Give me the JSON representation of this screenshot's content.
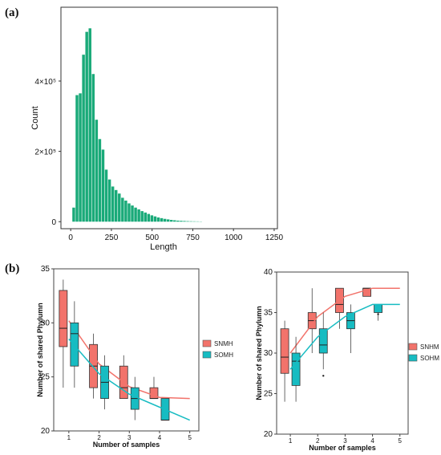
{
  "panel_labels": {
    "a": "(a)",
    "b": "(b)"
  },
  "chart_data": [
    {
      "type": "bar",
      "subtype": "histogram",
      "xlabel": "Length",
      "ylabel": "Count",
      "xlim": [
        -60,
        1270
      ],
      "ylim": [
        -20000,
        610000
      ],
      "x_ticks": [
        0,
        250,
        500,
        750,
        1000,
        1250
      ],
      "x_tick_labels": [
        "0",
        "250",
        "500",
        "750",
        "1000",
        "1250"
      ],
      "y_ticks": [
        0,
        200000,
        400000
      ],
      "y_tick_labels": [
        "0",
        "2×10⁵",
        "4×10⁵"
      ],
      "color": "#1aaa79",
      "bin_width": 20,
      "bins": [
        {
          "x": 20,
          "count": 40000
        },
        {
          "x": 40,
          "count": 360000
        },
        {
          "x": 60,
          "count": 365000
        },
        {
          "x": 80,
          "count": 475000
        },
        {
          "x": 100,
          "count": 540000
        },
        {
          "x": 120,
          "count": 550000
        },
        {
          "x": 140,
          "count": 420000
        },
        {
          "x": 160,
          "count": 290000
        },
        {
          "x": 180,
          "count": 235000
        },
        {
          "x": 200,
          "count": 205000
        },
        {
          "x": 220,
          "count": 148000
        },
        {
          "x": 240,
          "count": 120000
        },
        {
          "x": 260,
          "count": 100000
        },
        {
          "x": 280,
          "count": 90000
        },
        {
          "x": 300,
          "count": 80000
        },
        {
          "x": 320,
          "count": 68000
        },
        {
          "x": 340,
          "count": 60000
        },
        {
          "x": 360,
          "count": 52000
        },
        {
          "x": 380,
          "count": 46000
        },
        {
          "x": 400,
          "count": 40000
        },
        {
          "x": 420,
          "count": 35000
        },
        {
          "x": 440,
          "count": 30000
        },
        {
          "x": 460,
          "count": 26000
        },
        {
          "x": 480,
          "count": 22000
        },
        {
          "x": 500,
          "count": 18000
        },
        {
          "x": 520,
          "count": 15000
        },
        {
          "x": 540,
          "count": 12000
        },
        {
          "x": 560,
          "count": 10000
        },
        {
          "x": 580,
          "count": 8000
        },
        {
          "x": 600,
          "count": 6500
        },
        {
          "x": 620,
          "count": 5000
        },
        {
          "x": 640,
          "count": 4000
        },
        {
          "x": 660,
          "count": 3000
        },
        {
          "x": 680,
          "count": 2500
        },
        {
          "x": 700,
          "count": 2000
        },
        {
          "x": 720,
          "count": 1500
        },
        {
          "x": 740,
          "count": 1200
        },
        {
          "x": 760,
          "count": 1000
        },
        {
          "x": 780,
          "count": 800
        },
        {
          "x": 800,
          "count": 600
        }
      ]
    },
    {
      "type": "boxplot",
      "xlabel": "Number of samples",
      "ylabel": "Number of shared Phylumn",
      "xlim": [
        0.5,
        5.3
      ],
      "ylim": [
        20,
        35
      ],
      "x_ticks": [
        1,
        2,
        3,
        4,
        5
      ],
      "y_ticks": [
        20,
        25,
        30,
        35
      ],
      "legend_position": "right",
      "series": [
        {
          "name": "SNMH",
          "color": "#f2736b",
          "boxes": [
            {
              "x": 1,
              "q1": 27.8,
              "median": 29.5,
              "q3": 33,
              "whisker_low": 24,
              "whisker_high": 34
            },
            {
              "x": 2,
              "q1": 24,
              "median": 26,
              "q3": 28,
              "whisker_low": 23,
              "whisker_high": 29
            },
            {
              "x": 3,
              "q1": 23,
              "median": 24,
              "q3": 26,
              "whisker_low": 23,
              "whisker_high": 27
            },
            {
              "x": 4,
              "q1": 23,
              "median": 23,
              "q3": 24,
              "whisker_low": 23,
              "whisker_high": 25
            }
          ],
          "curve": [
            [
              1,
              30.2
            ],
            [
              2,
              26.2
            ],
            [
              3,
              24.1
            ],
            [
              4,
              23.1
            ],
            [
              5,
              23
            ]
          ]
        },
        {
          "name": "SOMH",
          "color": "#17bcc2",
          "boxes": [
            {
              "x": 1,
              "q1": 26,
              "median": 29,
              "q3": 30,
              "whisker_low": 24,
              "whisker_high": 32
            },
            {
              "x": 2,
              "q1": 23,
              "median": 24.5,
              "q3": 26,
              "whisker_low": 22,
              "whisker_high": 27
            },
            {
              "x": 3,
              "q1": 22,
              "median": 23,
              "q3": 24,
              "whisker_low": 21,
              "whisker_high": 25
            },
            {
              "x": 4,
              "q1": 21,
              "median": 21,
              "q3": 23,
              "whisker_low": 21,
              "whisker_high": 23
            }
          ],
          "curve": [
            [
              1,
              28.5
            ],
            [
              2,
              25.3
            ],
            [
              3,
              23.4
            ],
            [
              4,
              22.2
            ],
            [
              5,
              21
            ]
          ]
        }
      ]
    },
    {
      "type": "boxplot",
      "xlabel": "Number of samples",
      "ylabel": "Number of shared Phylumn",
      "xlim": [
        0.5,
        5.3
      ],
      "ylim": [
        20,
        40
      ],
      "x_ticks": [
        1,
        2,
        3,
        4,
        5
      ],
      "y_ticks": [
        20,
        25,
        30,
        35,
        40
      ],
      "legend_position": "right",
      "series": [
        {
          "name": "SNHM",
          "color": "#f2736b",
          "boxes": [
            {
              "x": 1,
              "q1": 27.5,
              "median": 29.5,
              "q3": 33,
              "whisker_low": 24,
              "whisker_high": 34
            },
            {
              "x": 2,
              "q1": 33,
              "median": 34,
              "q3": 35,
              "whisker_low": 30,
              "whisker_high": 38
            },
            {
              "x": 3,
              "q1": 35,
              "median": 36,
              "q3": 38,
              "whisker_low": 33,
              "whisker_high": 38
            },
            {
              "x": 4,
              "q1": 37,
              "median": 38,
              "q3": 38,
              "whisker_low": 37,
              "whisker_high": 38
            }
          ],
          "curve": [
            [
              1,
              30
            ],
            [
              2,
              34.5
            ],
            [
              3,
              37
            ],
            [
              4,
              38
            ],
            [
              5,
              38
            ]
          ]
        },
        {
          "name": "SOHM",
          "color": "#17bcc2",
          "boxes": [
            {
              "x": 1,
              "q1": 26,
              "median": 29,
              "q3": 30,
              "whisker_low": 24,
              "whisker_high": 32
            },
            {
              "x": 2,
              "q1": 30,
              "median": 31,
              "q3": 33,
              "whisker_low": 28,
              "whisker_high": 35
            },
            {
              "x": 3,
              "q1": 33,
              "median": 34,
              "q3": 35,
              "whisker_low": 30,
              "whisker_high": 36
            },
            {
              "x": 4,
              "q1": 35,
              "median": 36,
              "q3": 36,
              "whisker_low": 34,
              "whisker_high": 36
            }
          ],
          "outliers": [
            [
              2,
              27.2
            ],
            [
              4,
              34.8
            ]
          ],
          "curve": [
            [
              1,
              28
            ],
            [
              2,
              32
            ],
            [
              3,
              34.5
            ],
            [
              4,
              36
            ],
            [
              5,
              36
            ]
          ]
        }
      ]
    }
  ]
}
